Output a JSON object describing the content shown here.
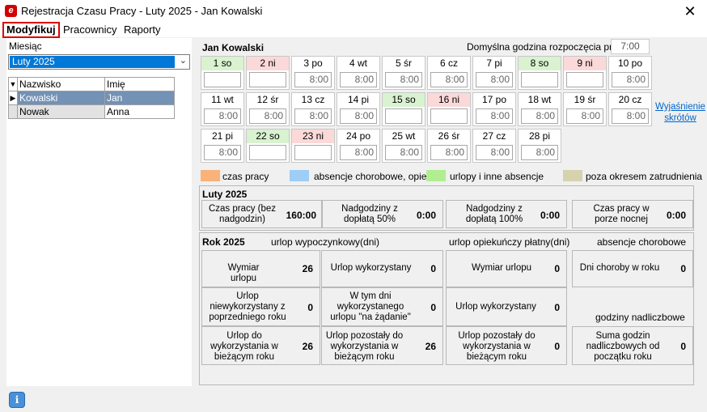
{
  "window": {
    "title": "Rejestracja Czasu Pracy - Luty 2025 - Jan Kowalski",
    "app_icon": "e",
    "close": "✕"
  },
  "menu": {
    "items": [
      "Modyfikuj",
      "Pracownicy",
      "Raporty"
    ]
  },
  "left": {
    "month_label": "Miesiąc",
    "month_value": "Luty 2025",
    "columns": [
      "Nazwisko",
      "Imię"
    ],
    "rows": [
      {
        "last": "Kowalski",
        "first": "Jan"
      },
      {
        "last": "Nowak",
        "first": "Anna"
      }
    ]
  },
  "calendar": {
    "employee": "Jan Kowalski",
    "default_start_label": "Domyślna godzina rozpoczęcia pracy:",
    "default_start_value": "7:00",
    "days": [
      {
        "label": "1 so",
        "hours": "",
        "type": "sat"
      },
      {
        "label": "2 ni",
        "hours": "",
        "type": "sun"
      },
      {
        "label": "3 po",
        "hours": "8:00",
        "type": "wd"
      },
      {
        "label": "4 wt",
        "hours": "8:00",
        "type": "wd"
      },
      {
        "label": "5 śr",
        "hours": "8:00",
        "type": "wd"
      },
      {
        "label": "6 cz",
        "hours": "8:00",
        "type": "wd"
      },
      {
        "label": "7 pi",
        "hours": "8:00",
        "type": "wd"
      },
      {
        "label": "8 so",
        "hours": "",
        "type": "sat"
      },
      {
        "label": "9 ni",
        "hours": "",
        "type": "sun"
      },
      {
        "label": "10 po",
        "hours": "8:00",
        "type": "wd"
      },
      {
        "label": "11 wt",
        "hours": "8:00",
        "type": "wd"
      },
      {
        "label": "12 śr",
        "hours": "8:00",
        "type": "wd"
      },
      {
        "label": "13 cz",
        "hours": "8:00",
        "type": "wd"
      },
      {
        "label": "14 pi",
        "hours": "8:00",
        "type": "wd"
      },
      {
        "label": "15 so",
        "hours": "",
        "type": "sat"
      },
      {
        "label": "16 ni",
        "hours": "",
        "type": "sun"
      },
      {
        "label": "17 po",
        "hours": "8:00",
        "type": "wd"
      },
      {
        "label": "18 wt",
        "hours": "8:00",
        "type": "wd"
      },
      {
        "label": "19 śr",
        "hours": "8:00",
        "type": "wd"
      },
      {
        "label": "20 cz",
        "hours": "8:00",
        "type": "wd"
      },
      {
        "label": "21 pi",
        "hours": "8:00",
        "type": "wd"
      },
      {
        "label": "22 so",
        "hours": "",
        "type": "sat"
      },
      {
        "label": "23 ni",
        "hours": "",
        "type": "sun"
      },
      {
        "label": "24 po",
        "hours": "8:00",
        "type": "wd"
      },
      {
        "label": "25 wt",
        "hours": "8:00",
        "type": "wd"
      },
      {
        "label": "26 śr",
        "hours": "8:00",
        "type": "wd"
      },
      {
        "label": "27 cz",
        "hours": "8:00",
        "type": "wd"
      },
      {
        "label": "28 pi",
        "hours": "8:00",
        "type": "wd"
      }
    ],
    "explain_link": "Wyjaśnienie skrótów"
  },
  "legend": [
    {
      "label": "czas pracy",
      "color": "#f9b27a"
    },
    {
      "label": "absencje chorobowe, opieki",
      "color": "#9ecdf6"
    },
    {
      "label": "urlopy i inne absencje",
      "color": "#b0ee90"
    },
    {
      "label": "poza okresem zatrudnienia",
      "color": "#d6d2b0"
    }
  ],
  "month_summary": {
    "title": "Luty 2025",
    "items": [
      {
        "label": "Czas pracy (bez nadgodzin)",
        "value": "160:00"
      },
      {
        "label": "Nadgodziny z dopłatą 50%",
        "value": "0:00"
      },
      {
        "label": "Nadgodziny z dopłatą 100%",
        "value": "0:00"
      },
      {
        "label": "Czas pracy w porze nocnej",
        "value": "0:00"
      }
    ]
  },
  "year_summary": {
    "title": "Rok 2025",
    "headers": [
      "urlop wypoczynkowy(dni)",
      "urlop opiekuńczy płatny(dni)",
      "absencje chorobowe",
      "godziny nadliczbowe"
    ],
    "vacation": [
      {
        "label": "Wymiar urlopu",
        "value": "26"
      },
      {
        "label": "Urlop wykorzystany",
        "value": "0"
      },
      {
        "label": "Urlop niewykorzystany z poprzedniego roku",
        "value": "0"
      },
      {
        "label": "W tym dni wykorzystanego urlopu \"na żądanie\"",
        "value": "0"
      },
      {
        "label": "Urlop do wykorzystania w bieżącym roku",
        "value": "26"
      },
      {
        "label": "Urlop pozostały do wykorzystania w bieżącym roku",
        "value": "26"
      }
    ],
    "care": [
      {
        "label": "Wymiar urlopu",
        "value": "0"
      },
      {
        "label": "Urlop wykorzystany",
        "value": "0"
      },
      {
        "label": "Urlop pozostały do wykorzystania w bieżącym roku",
        "value": "0"
      }
    ],
    "sick": {
      "label": "Dni choroby w roku",
      "value": "0"
    },
    "overtime": {
      "label": "Suma godzin nadliczbowych od początku roku",
      "value": "0"
    }
  }
}
